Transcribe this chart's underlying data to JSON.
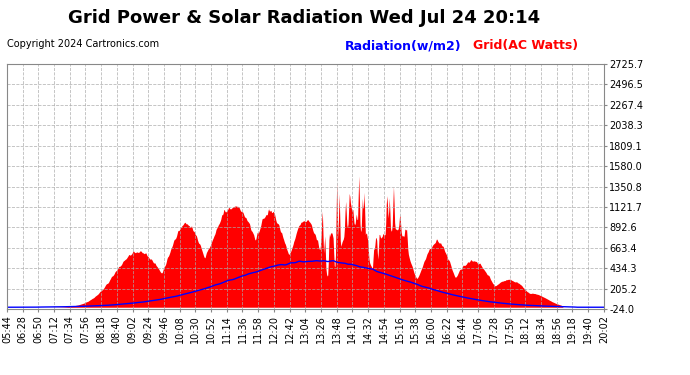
{
  "title": "Grid Power & Solar Radiation Wed Jul 24 20:14",
  "copyright": "Copyright 2024 Cartronics.com",
  "legend_radiation": "Radiation(w/m2)",
  "legend_grid": "Grid(AC Watts)",
  "yticks": [
    2725.7,
    2496.5,
    2267.4,
    2038.3,
    1809.1,
    1580.0,
    1350.8,
    1121.7,
    892.6,
    663.4,
    434.3,
    205.2,
    -24.0
  ],
  "ymin": -24.0,
  "ymax": 2725.7,
  "bg_color": "#ffffff",
  "plot_bg_color": "#ffffff",
  "grid_color": "#aaaaaa",
  "radiation_color": "#0000ff",
  "grid_ac_color": "#ff0000",
  "x_labels": [
    "05:44",
    "06:28",
    "06:50",
    "07:12",
    "07:34",
    "07:56",
    "08:18",
    "08:40",
    "09:02",
    "09:24",
    "09:46",
    "10:08",
    "10:30",
    "10:52",
    "11:14",
    "11:36",
    "11:58",
    "12:20",
    "12:42",
    "13:04",
    "13:26",
    "13:48",
    "14:10",
    "14:32",
    "14:54",
    "15:16",
    "15:38",
    "16:00",
    "16:22",
    "16:44",
    "17:06",
    "17:28",
    "17:50",
    "18:12",
    "18:34",
    "18:56",
    "19:18",
    "19:40",
    "20:02"
  ],
  "title_fontsize": 13,
  "label_fontsize": 7,
  "copyright_fontsize": 7,
  "legend_fontsize": 9
}
